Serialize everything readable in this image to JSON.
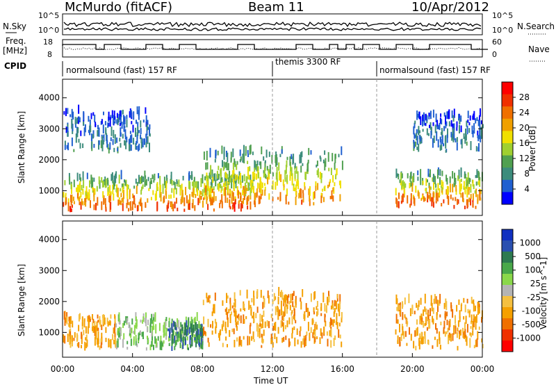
{
  "header": {
    "title": "McMurdo (fitACF)",
    "beam": "Beam 11",
    "date": "10/Apr/2012"
  },
  "top_panels": {
    "nsky_label": "N.Sky",
    "nsky_tick_top": "10^5",
    "nsky_tick_bottom": "10^0",
    "nsearch_label": "N.Search",
    "nsearch_tick_top": "10^5",
    "nsearch_tick_bottom": "10^0",
    "freq_label_1": "Freq.",
    "freq_label_2": "[MHz]",
    "freq_tick_top": "18",
    "freq_tick_bottom": "8",
    "nave_label": "Nave",
    "nave_tick_top": "60",
    "nave_tick_bottom": "0",
    "cpid_label": "CPID",
    "cpid_segments": [
      {
        "label": "normalsound (fast) 157 RF",
        "start": "00:00",
        "end": "12:00"
      },
      {
        "label": "themis 3300 RF",
        "start": "12:00",
        "end": "18:00"
      },
      {
        "label": "normalsound (fast) 157 RF",
        "start": "18:00",
        "end": "24:00"
      }
    ]
  },
  "colors": {
    "power_scale": [
      "#0000ff",
      "#2060d0",
      "#3c8c7c",
      "#50a050",
      "#a0d030",
      "#f0e000",
      "#f0a000",
      "#f07000",
      "#f03000",
      "#ff0000"
    ],
    "velocity_scale": [
      "#1030c0",
      "#2a50b0",
      "#2d7a50",
      "#49a84a",
      "#8ad84a",
      "#b4b4b4",
      "#f5c040",
      "#f5a000",
      "#f07000",
      "#f03000",
      "#ff0000"
    ]
  },
  "chart_data": [
    {
      "type": "heatmap",
      "name": "Power",
      "ylabel": "Slant Range [km]",
      "yticks": [
        "1000",
        "2000",
        "3000",
        "4000"
      ],
      "ylim": [
        200,
        4600
      ],
      "xlim": [
        "00:00",
        "24:00"
      ],
      "colorbar": {
        "label": "Power [dB]",
        "ticks": [
          "4",
          "8",
          "12",
          "16",
          "20",
          "24",
          "28"
        ],
        "range": [
          0,
          32
        ]
      },
      "features": [
        {
          "time_start": "00:00",
          "time_end": "11:00",
          "range_min_km": 300,
          "range_max_km": 1400,
          "peak_db": 28
        },
        {
          "time_start": "00:00",
          "time_end": "05:00",
          "range_min_km": 2200,
          "range_max_km": 3500,
          "peak_db": 8
        },
        {
          "time_start": "08:00",
          "time_end": "16:00",
          "range_min_km": 500,
          "range_max_km": 2200,
          "peak_db": 24
        },
        {
          "time_start": "19:00",
          "time_end": "24:00",
          "range_min_km": 400,
          "range_max_km": 1500,
          "peak_db": 28
        },
        {
          "time_start": "20:00",
          "time_end": "24:00",
          "range_min_km": 2200,
          "range_max_km": 3400,
          "peak_db": 8
        }
      ]
    },
    {
      "type": "heatmap",
      "name": "Velocity",
      "ylabel": "Slant Range [km]",
      "yticks": [
        "1000",
        "2000",
        "3000",
        "4000"
      ],
      "ylim": [
        200,
        4600
      ],
      "xlabel": "Time UT",
      "xticks": [
        "00:00",
        "04:00",
        "08:00",
        "12:00",
        "16:00",
        "20:00",
        "00:00"
      ],
      "xlim": [
        "00:00",
        "24:00"
      ],
      "colorbar": {
        "label": "Velocity [m s^-1]",
        "ticks": [
          "1000",
          "500",
          "100",
          "25",
          "-25",
          "-100",
          "-500",
          "-1000"
        ]
      },
      "features": [
        {
          "time_start": "00:00",
          "time_end": "03:00",
          "range_min_km": 400,
          "range_max_km": 1500,
          "velocity": -300
        },
        {
          "time_start": "03:00",
          "time_end": "08:00",
          "range_min_km": 400,
          "range_max_km": 1400,
          "velocity": 80
        },
        {
          "time_start": "06:00",
          "time_end": "08:00",
          "range_min_km": 400,
          "range_max_km": 1200,
          "velocity": 400
        },
        {
          "time_start": "08:00",
          "time_end": "16:00",
          "range_min_km": 500,
          "range_max_km": 2200,
          "velocity": -150
        },
        {
          "time_start": "19:00",
          "time_end": "24:00",
          "range_min_km": 400,
          "range_max_km": 2000,
          "velocity": -200
        }
      ]
    }
  ]
}
